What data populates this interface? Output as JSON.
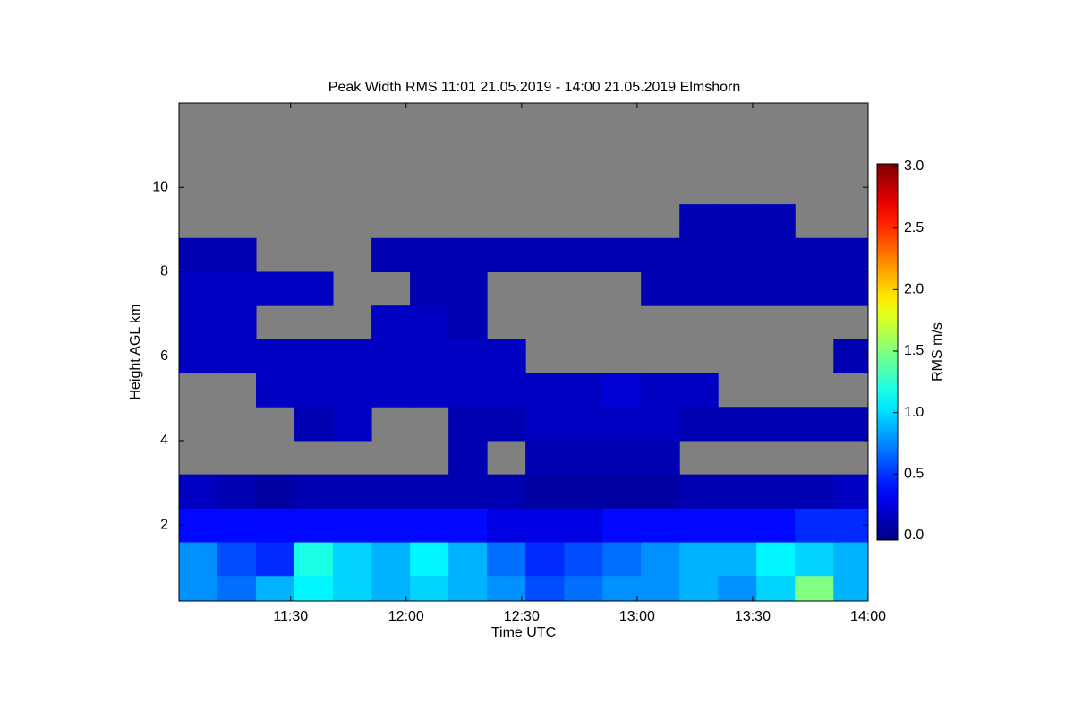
{
  "chart_data": {
    "type": "heatmap",
    "title": "Peak Width RMS   11:01 21.05.2019 - 14:00 21.05.2019 Elmshorn",
    "xlabel": "Time UTC",
    "ylabel": "Height AGL km",
    "xlim": [
      661,
      840
    ],
    "xticks": [
      {
        "value": 690,
        "label": "11:30"
      },
      {
        "value": 720,
        "label": "12:00"
      },
      {
        "value": 750,
        "label": "12:30"
      },
      {
        "value": 780,
        "label": "13:00"
      },
      {
        "value": 810,
        "label": "13:30"
      },
      {
        "value": 840,
        "label": "14:00"
      }
    ],
    "ylim": [
      0.2,
      12
    ],
    "yticks": [
      2,
      4,
      6,
      8,
      10
    ],
    "xbins": [
      661,
      671,
      681,
      691,
      701,
      711,
      721,
      731,
      741,
      751,
      761,
      771,
      781,
      791,
      801,
      811,
      821,
      831,
      840
    ],
    "ybins": [
      0.2,
      0.8,
      1.6,
      2.4,
      3.2,
      4.0,
      4.8,
      5.6,
      6.4,
      7.2,
      8.0,
      8.8,
      9.6,
      12
    ],
    "z": [
      [
        0.8,
        0.7,
        0.9,
        1.1,
        1.0,
        0.9,
        1.0,
        0.9,
        0.8,
        0.6,
        0.7,
        0.8,
        0.8,
        0.9,
        0.8,
        1.0,
        1.5,
        0.9
      ],
      [
        0.8,
        0.6,
        0.5,
        1.2,
        1.0,
        0.9,
        1.1,
        0.9,
        0.7,
        0.5,
        0.6,
        0.7,
        0.8,
        0.9,
        0.9,
        1.1,
        1.0,
        0.9
      ],
      [
        0.4,
        0.4,
        0.4,
        0.4,
        0.4,
        0.4,
        0.4,
        0.4,
        0.3,
        0.3,
        0.3,
        0.4,
        0.4,
        0.4,
        0.4,
        0.4,
        0.5,
        0.5
      ],
      [
        0.2,
        0.15,
        0.1,
        0.15,
        0.15,
        0.15,
        0.15,
        0.15,
        0.15,
        0.1,
        0.1,
        0.1,
        0.1,
        0.15,
        0.15,
        0.15,
        0.15,
        0.2
      ],
      [
        null,
        null,
        null,
        null,
        null,
        null,
        null,
        0.15,
        null,
        0.15,
        0.15,
        0.15,
        0.15,
        null,
        null,
        null,
        null,
        null
      ],
      [
        null,
        null,
        null,
        0.15,
        0.2,
        null,
        null,
        0.15,
        0.15,
        0.2,
        0.2,
        0.2,
        0.2,
        0.15,
        0.15,
        0.15,
        0.15,
        0.15
      ],
      [
        null,
        null,
        0.2,
        0.2,
        0.2,
        0.2,
        0.2,
        0.2,
        0.2,
        0.2,
        0.2,
        0.25,
        0.2,
        0.2,
        null,
        null,
        null,
        null
      ],
      [
        0.2,
        0.2,
        0.2,
        0.2,
        0.2,
        0.2,
        0.2,
        0.2,
        0.2,
        null,
        null,
        null,
        null,
        null,
        null,
        null,
        null,
        0.15
      ],
      [
        0.2,
        0.2,
        null,
        null,
        null,
        0.2,
        0.2,
        0.15,
        null,
        null,
        null,
        null,
        null,
        null,
        null,
        null,
        null,
        null
      ],
      [
        0.2,
        0.2,
        0.2,
        0.2,
        null,
        null,
        0.15,
        0.15,
        null,
        null,
        null,
        null,
        0.15,
        0.15,
        0.15,
        0.15,
        0.15,
        0.15
      ],
      [
        0.15,
        0.15,
        null,
        null,
        null,
        0.15,
        0.15,
        0.15,
        0.15,
        0.15,
        0.15,
        0.15,
        0.15,
        0.15,
        0.15,
        0.15,
        0.15,
        0.15
      ],
      [
        null,
        null,
        null,
        null,
        null,
        null,
        null,
        null,
        null,
        null,
        null,
        null,
        null,
        0.15,
        0.15,
        0.15,
        null,
        null
      ],
      [
        null,
        null,
        null,
        null,
        null,
        null,
        null,
        null,
        null,
        null,
        null,
        null,
        null,
        null,
        null,
        null,
        null,
        null
      ]
    ],
    "colormap": "jet",
    "missing_color": "#808080",
    "zlim": [
      0,
      3
    ],
    "zticks": [
      {
        "value": 0,
        "label": "0.0"
      },
      {
        "value": 0.5,
        "label": "0.5"
      },
      {
        "value": 1,
        "label": "1.0"
      },
      {
        "value": 1.5,
        "label": "1.5"
      },
      {
        "value": 2,
        "label": "2.0"
      },
      {
        "value": 2.5,
        "label": "2.5"
      },
      {
        "value": 3,
        "label": "3.0"
      }
    ],
    "colorbar_label": "RMS m/s"
  }
}
